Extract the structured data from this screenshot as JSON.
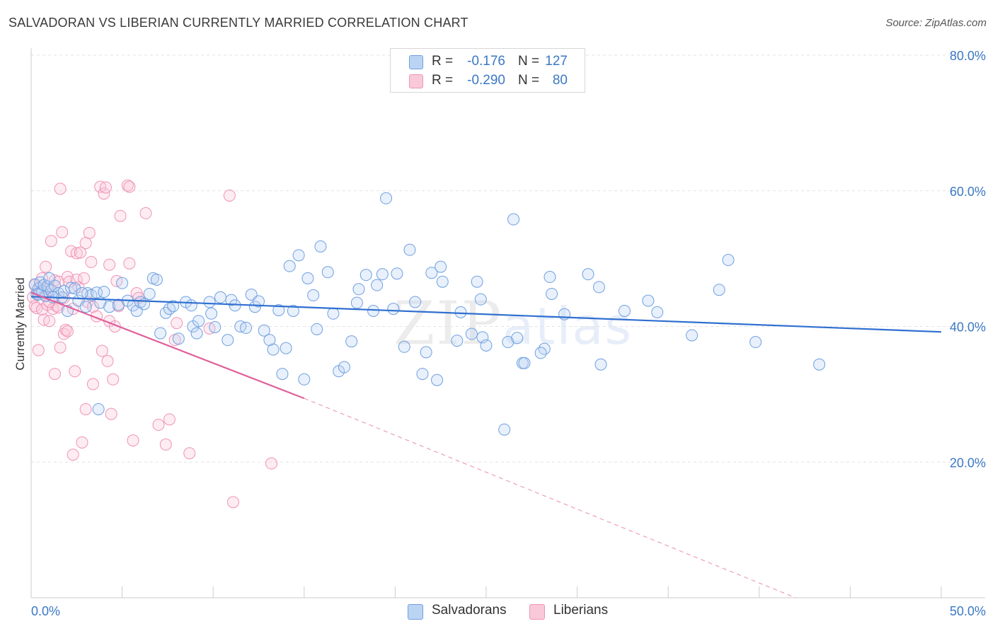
{
  "header": {
    "title": "SALVADORAN VS LIBERIAN CURRENTLY MARRIED CORRELATION CHART",
    "source": "Source: ZipAtlas.com"
  },
  "legend": {
    "rows": [
      {
        "r_label": "R =",
        "r_value": "-0.176",
        "n_label": "N =",
        "n_value": "127",
        "color": "#6fa0e0"
      },
      {
        "r_label": "R =",
        "r_value": "-0.290",
        "n_label": "N =",
        "n_value": "80",
        "color": "#f093b6"
      }
    ]
  },
  "bottom_legend": {
    "items": [
      {
        "label": "Salvadorans",
        "color": "#6fa0e0"
      },
      {
        "label": "Liberians",
        "color": "#f093b6"
      }
    ]
  },
  "watermark": {
    "zip": "ZIP",
    "atlas": "atlas"
  },
  "chart_data": {
    "type": "scatter",
    "title": "SALVADORAN VS LIBERIAN CURRENTLY MARRIED CORRELATION CHART",
    "xlabel": "",
    "ylabel": "Currently Married",
    "xlim": [
      0,
      50
    ],
    "ylim": [
      0,
      80
    ],
    "x_tick_labels": [
      "0.0%",
      "50.0%"
    ],
    "y_tick_labels": [
      "20.0%",
      "40.0%",
      "60.0%",
      "80.0%"
    ],
    "y_ticks": [
      20,
      40,
      60,
      80
    ],
    "grid": true,
    "series": [
      {
        "name": "Salvadorans",
        "color": "#6fa0e0",
        "trend": {
          "x": [
            0,
            50
          ],
          "y": [
            44.4,
            39.2
          ],
          "style": "solid"
        },
        "points": [
          [
            0.2,
            46.2
          ],
          [
            0.3,
            44.8
          ],
          [
            0.4,
            45.6
          ],
          [
            0.5,
            46.5
          ],
          [
            0.6,
            45.2
          ],
          [
            0.7,
            46.1
          ],
          [
            0.8,
            44.5
          ],
          [
            0.9,
            45.9
          ],
          [
            1.0,
            47.1
          ],
          [
            1.1,
            45.3
          ],
          [
            1.3,
            46.0
          ],
          [
            1.5,
            44.9
          ],
          [
            1.7,
            44.3
          ],
          [
            1.8,
            45.2
          ],
          [
            2.0,
            42.3
          ],
          [
            2.2,
            45.7
          ],
          [
            2.4,
            45.6
          ],
          [
            2.6,
            43.8
          ],
          [
            3.0,
            42.9
          ],
          [
            3.1,
            44.9
          ],
          [
            3.3,
            44.6
          ],
          [
            3.6,
            45.0
          ],
          [
            3.8,
            43.5
          ],
          [
            4.0,
            45.1
          ],
          [
            4.3,
            42.9
          ],
          [
            4.8,
            43.2
          ],
          [
            5.0,
            46.4
          ],
          [
            5.3,
            43.8
          ],
          [
            5.6,
            43.1
          ],
          [
            5.8,
            42.3
          ],
          [
            6.0,
            43.6
          ],
          [
            6.2,
            43.3
          ],
          [
            6.5,
            44.8
          ],
          [
            6.7,
            47.1
          ],
          [
            6.9,
            46.9
          ],
          [
            7.1,
            39.0
          ],
          [
            7.4,
            42.0
          ],
          [
            7.6,
            42.6
          ],
          [
            7.8,
            43.0
          ],
          [
            8.1,
            38.2
          ],
          [
            8.5,
            43.6
          ],
          [
            8.8,
            43.1
          ],
          [
            8.9,
            40.0
          ],
          [
            9.1,
            39.0
          ],
          [
            9.2,
            40.8
          ],
          [
            9.8,
            43.6
          ],
          [
            9.9,
            41.9
          ],
          [
            10.1,
            39.9
          ],
          [
            10.4,
            44.3
          ],
          [
            10.8,
            38.0
          ],
          [
            11.0,
            43.9
          ],
          [
            11.2,
            43.1
          ],
          [
            11.5,
            40.0
          ],
          [
            11.8,
            39.8
          ],
          [
            12.1,
            44.7
          ],
          [
            12.3,
            42.9
          ],
          [
            12.5,
            43.7
          ],
          [
            12.8,
            39.4
          ],
          [
            13.1,
            38.0
          ],
          [
            13.3,
            36.6
          ],
          [
            13.6,
            42.4
          ],
          [
            13.8,
            33.0
          ],
          [
            14.0,
            36.8
          ],
          [
            14.2,
            48.9
          ],
          [
            14.4,
            42.3
          ],
          [
            14.7,
            50.5
          ],
          [
            15.0,
            32.2
          ],
          [
            15.2,
            47.1
          ],
          [
            15.5,
            44.6
          ],
          [
            15.7,
            39.6
          ],
          [
            15.9,
            51.8
          ],
          [
            16.3,
            48.0
          ],
          [
            16.6,
            41.9
          ],
          [
            16.9,
            33.4
          ],
          [
            17.2,
            34.0
          ],
          [
            17.6,
            37.8
          ],
          [
            17.9,
            43.5
          ],
          [
            18.0,
            45.5
          ],
          [
            18.4,
            47.6
          ],
          [
            18.8,
            42.3
          ],
          [
            19.0,
            46.1
          ],
          [
            19.3,
            47.7
          ],
          [
            19.5,
            58.9
          ],
          [
            19.9,
            42.6
          ],
          [
            20.1,
            47.8
          ],
          [
            20.5,
            37.0
          ],
          [
            20.8,
            51.3
          ],
          [
            21.1,
            43.6
          ],
          [
            21.5,
            33.0
          ],
          [
            21.7,
            36.2
          ],
          [
            22.0,
            47.9
          ],
          [
            22.3,
            32.1
          ],
          [
            22.5,
            48.8
          ],
          [
            22.6,
            46.6
          ],
          [
            23.4,
            37.9
          ],
          [
            23.6,
            42.1
          ],
          [
            24.2,
            38.9
          ],
          [
            24.5,
            46.6
          ],
          [
            24.7,
            44.0
          ],
          [
            24.8,
            38.4
          ],
          [
            25.0,
            37.2
          ],
          [
            26.0,
            24.8
          ],
          [
            26.2,
            37.7
          ],
          [
            26.5,
            55.8
          ],
          [
            26.7,
            38.3
          ],
          [
            27.0,
            34.6
          ],
          [
            27.1,
            34.6
          ],
          [
            28.2,
            36.7
          ],
          [
            28.0,
            36.1
          ],
          [
            28.5,
            47.3
          ],
          [
            28.6,
            44.8
          ],
          [
            29.3,
            41.8
          ],
          [
            30.6,
            47.7
          ],
          [
            31.2,
            45.8
          ],
          [
            31.3,
            34.4
          ],
          [
            32.6,
            42.3
          ],
          [
            33.9,
            43.8
          ],
          [
            34.4,
            42.1
          ],
          [
            36.3,
            38.7
          ],
          [
            37.8,
            45.4
          ],
          [
            38.3,
            49.8
          ],
          [
            39.8,
            37.7
          ],
          [
            43.3,
            34.4
          ],
          [
            3.7,
            27.8
          ],
          [
            0.4,
            44.7
          ],
          [
            1.2,
            44.3
          ],
          [
            2.8,
            44.9
          ]
        ]
      },
      {
        "name": "Liberians",
        "color": "#f093b6",
        "trend": {
          "x": [
            0,
            15
          ],
          "y": [
            45.0,
            29.4
          ],
          "style": "solid",
          "extend_to": [
            42,
            0
          ],
          "extend_style": "dashed"
        },
        "points": [
          [
            0.1,
            44.3
          ],
          [
            0.2,
            43.0
          ],
          [
            0.2,
            46.1
          ],
          [
            0.3,
            42.7
          ],
          [
            0.4,
            44.9
          ],
          [
            0.4,
            36.5
          ],
          [
            0.5,
            45.8
          ],
          [
            0.6,
            42.5
          ],
          [
            0.6,
            47.1
          ],
          [
            0.7,
            41.0
          ],
          [
            0.8,
            44.6
          ],
          [
            0.8,
            48.8
          ],
          [
            0.9,
            43.2
          ],
          [
            1.0,
            40.8
          ],
          [
            1.0,
            45.4
          ],
          [
            1.1,
            52.6
          ],
          [
            1.2,
            42.6
          ],
          [
            1.3,
            46.8
          ],
          [
            1.3,
            33.0
          ],
          [
            1.4,
            43.0
          ],
          [
            1.5,
            46.6
          ],
          [
            1.5,
            42.8
          ],
          [
            1.6,
            36.9
          ],
          [
            1.6,
            60.3
          ],
          [
            1.7,
            53.9
          ],
          [
            1.8,
            38.9
          ],
          [
            1.8,
            44.2
          ],
          [
            1.9,
            39.5
          ],
          [
            2.0,
            39.3
          ],
          [
            2.0,
            47.3
          ],
          [
            2.1,
            46.6
          ],
          [
            2.2,
            51.1
          ],
          [
            2.3,
            42.6
          ],
          [
            2.3,
            21.1
          ],
          [
            2.4,
            33.4
          ],
          [
            2.5,
            46.9
          ],
          [
            2.5,
            50.8
          ],
          [
            2.6,
            45.8
          ],
          [
            2.7,
            50.9
          ],
          [
            2.8,
            22.9
          ],
          [
            2.9,
            47.1
          ],
          [
            3.0,
            52.3
          ],
          [
            3.0,
            27.8
          ],
          [
            3.1,
            43.6
          ],
          [
            3.2,
            53.8
          ],
          [
            3.3,
            49.5
          ],
          [
            3.4,
            31.5
          ],
          [
            3.4,
            42.9
          ],
          [
            3.6,
            41.5
          ],
          [
            3.8,
            60.6
          ],
          [
            3.9,
            36.4
          ],
          [
            4.0,
            59.6
          ],
          [
            4.1,
            60.5
          ],
          [
            4.2,
            34.9
          ],
          [
            4.3,
            49.1
          ],
          [
            4.3,
            40.8
          ],
          [
            4.4,
            27.1
          ],
          [
            4.5,
            32.2
          ],
          [
            4.6,
            40.0
          ],
          [
            4.7,
            46.7
          ],
          [
            4.8,
            43.0
          ],
          [
            4.9,
            56.3
          ],
          [
            5.3,
            60.8
          ],
          [
            5.4,
            60.6
          ],
          [
            5.4,
            49.3
          ],
          [
            5.6,
            23.2
          ],
          [
            5.8,
            44.9
          ],
          [
            5.9,
            44.2
          ],
          [
            6.3,
            56.7
          ],
          [
            7.0,
            25.5
          ],
          [
            7.4,
            22.6
          ],
          [
            7.6,
            26.3
          ],
          [
            7.9,
            38.0
          ],
          [
            8.0,
            40.5
          ],
          [
            8.7,
            21.3
          ],
          [
            9.8,
            39.7
          ],
          [
            10.9,
            59.3
          ],
          [
            11.1,
            14.1
          ],
          [
            13.2,
            19.8
          ],
          [
            1.0,
            43.6
          ]
        ]
      }
    ]
  }
}
